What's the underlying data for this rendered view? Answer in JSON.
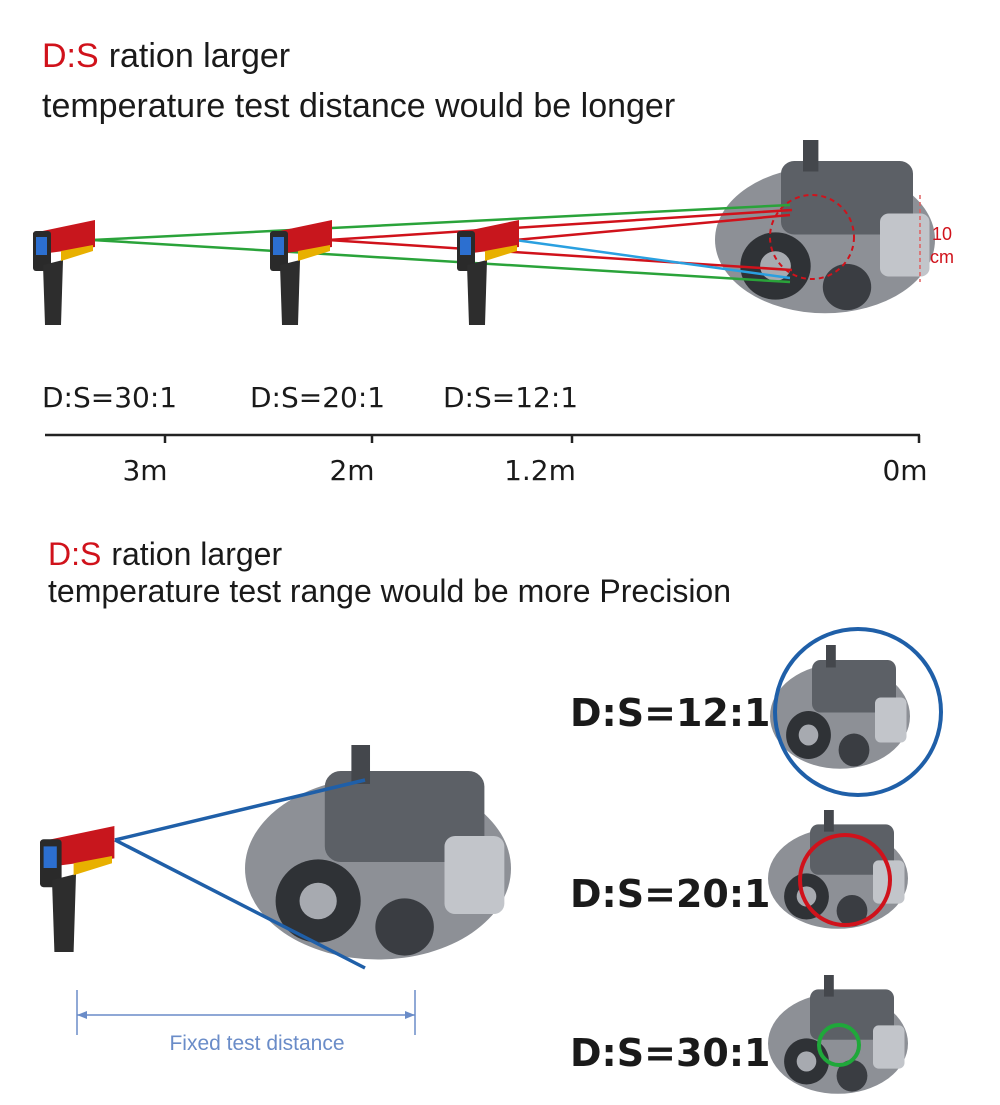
{
  "section_1": {
    "heading": {
      "highlight": "D:S",
      "rest": "ration larger"
    },
    "subheading": "temperature test distance would be longer",
    "spot_size": {
      "value": "10",
      "unit": "cm"
    },
    "ratios": [
      "D:S=30:1",
      "D:S=20:1",
      "D:S=12:1"
    ],
    "distances": [
      "3m",
      "2m",
      "1.2m",
      "0m"
    ]
  },
  "section_2": {
    "heading": {
      "highlight": "D:S",
      "rest": "ration larger"
    },
    "subheading": "temperature test range would be more Precision",
    "fixed_distance_label": "Fixed test distance",
    "ratios": [
      "D:S=12:1",
      "D:S=20:1",
      "D:S=30:1"
    ]
  }
}
